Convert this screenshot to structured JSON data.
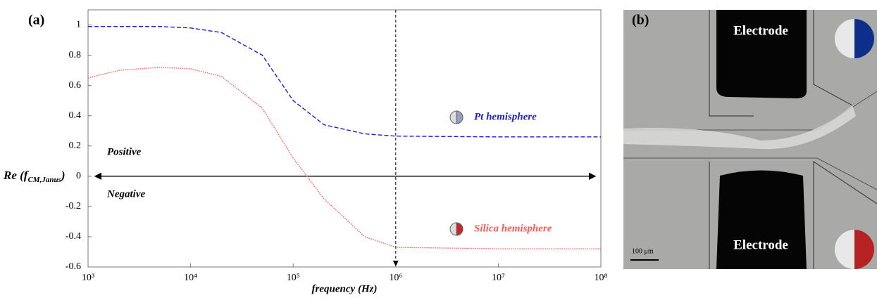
{
  "chart_data": {
    "type": "line",
    "panel_label": "(a)",
    "xlabel": "frequency (Hz)",
    "ylabel": {
      "main": "Re (f",
      "sub": "CM,Janus",
      "end": ")"
    },
    "xscale": "log",
    "xlim": [
      1000,
      100000000
    ],
    "ylim": [
      -0.6,
      1.1
    ],
    "xticks": [
      {
        "value": 1000,
        "label": "10³"
      },
      {
        "value": 10000,
        "label": "10⁴"
      },
      {
        "value": 100000,
        "label": "10⁵"
      },
      {
        "value": 1000000,
        "label": "10⁶"
      },
      {
        "value": 10000000,
        "label": "10⁷"
      },
      {
        "value": 100000000,
        "label": "10⁸"
      }
    ],
    "yticks": [
      -0.6,
      -0.4,
      -0.2,
      0,
      0.2,
      0.4,
      0.6,
      0.8,
      1
    ],
    "x": [
      1000,
      2000,
      5000,
      10000,
      20000,
      50000,
      100000,
      200000,
      500000,
      1000000,
      10000000,
      100000000
    ],
    "series": [
      {
        "name": "Pt hemisphere",
        "color": "#1f1fd6",
        "line_style": "dashed",
        "values": [
          0.99,
          0.99,
          0.99,
          0.98,
          0.95,
          0.8,
          0.5,
          0.34,
          0.28,
          0.265,
          0.26,
          0.26
        ]
      },
      {
        "name": "Silica hemisphere",
        "color": "#ff5a5a",
        "line_style": "dotted",
        "values": [
          0.65,
          0.7,
          0.72,
          0.71,
          0.66,
          0.45,
          0.12,
          -0.15,
          -0.4,
          -0.47,
          -0.48,
          -0.48
        ]
      }
    ],
    "annotations": [
      "Positive",
      "Negative"
    ]
  },
  "micrograph": {
    "panel_label": "(b)",
    "electrode_labels": [
      "Electrode",
      "Electrode"
    ],
    "scale_bar": "100 μm"
  }
}
